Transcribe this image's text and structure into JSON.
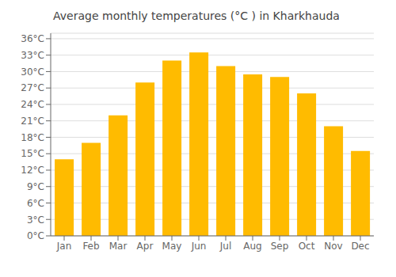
{
  "chart_data": {
    "type": "bar",
    "title": "Average monthly temperatures (°C ) in Kharkhauda",
    "categories": [
      "Jan",
      "Feb",
      "Mar",
      "Apr",
      "May",
      "Jun",
      "Jul",
      "Aug",
      "Sep",
      "Oct",
      "Nov",
      "Dec"
    ],
    "values": [
      14,
      17,
      22,
      28,
      32,
      33.5,
      31,
      29.5,
      29,
      26,
      20,
      15.5
    ],
    "color": "#FFBB00",
    "ylim": [
      0,
      37
    ],
    "yticks": [
      {
        "value": 0,
        "label": "0°C"
      },
      {
        "value": 3,
        "label": "3°C"
      },
      {
        "value": 6,
        "label": "6°C"
      },
      {
        "value": 9,
        "label": "9°C"
      },
      {
        "value": 12,
        "label": "12°C"
      },
      {
        "value": 15,
        "label": "15°C"
      },
      {
        "value": 18,
        "label": "18°C"
      },
      {
        "value": 21,
        "label": "21°C"
      },
      {
        "value": 24,
        "label": "24°C"
      },
      {
        "value": 27,
        "label": "27°C"
      },
      {
        "value": 30,
        "label": "30°C"
      },
      {
        "value": 33,
        "label": "33°C"
      },
      {
        "value": 36,
        "label": "36°C"
      }
    ],
    "grid": true
  }
}
